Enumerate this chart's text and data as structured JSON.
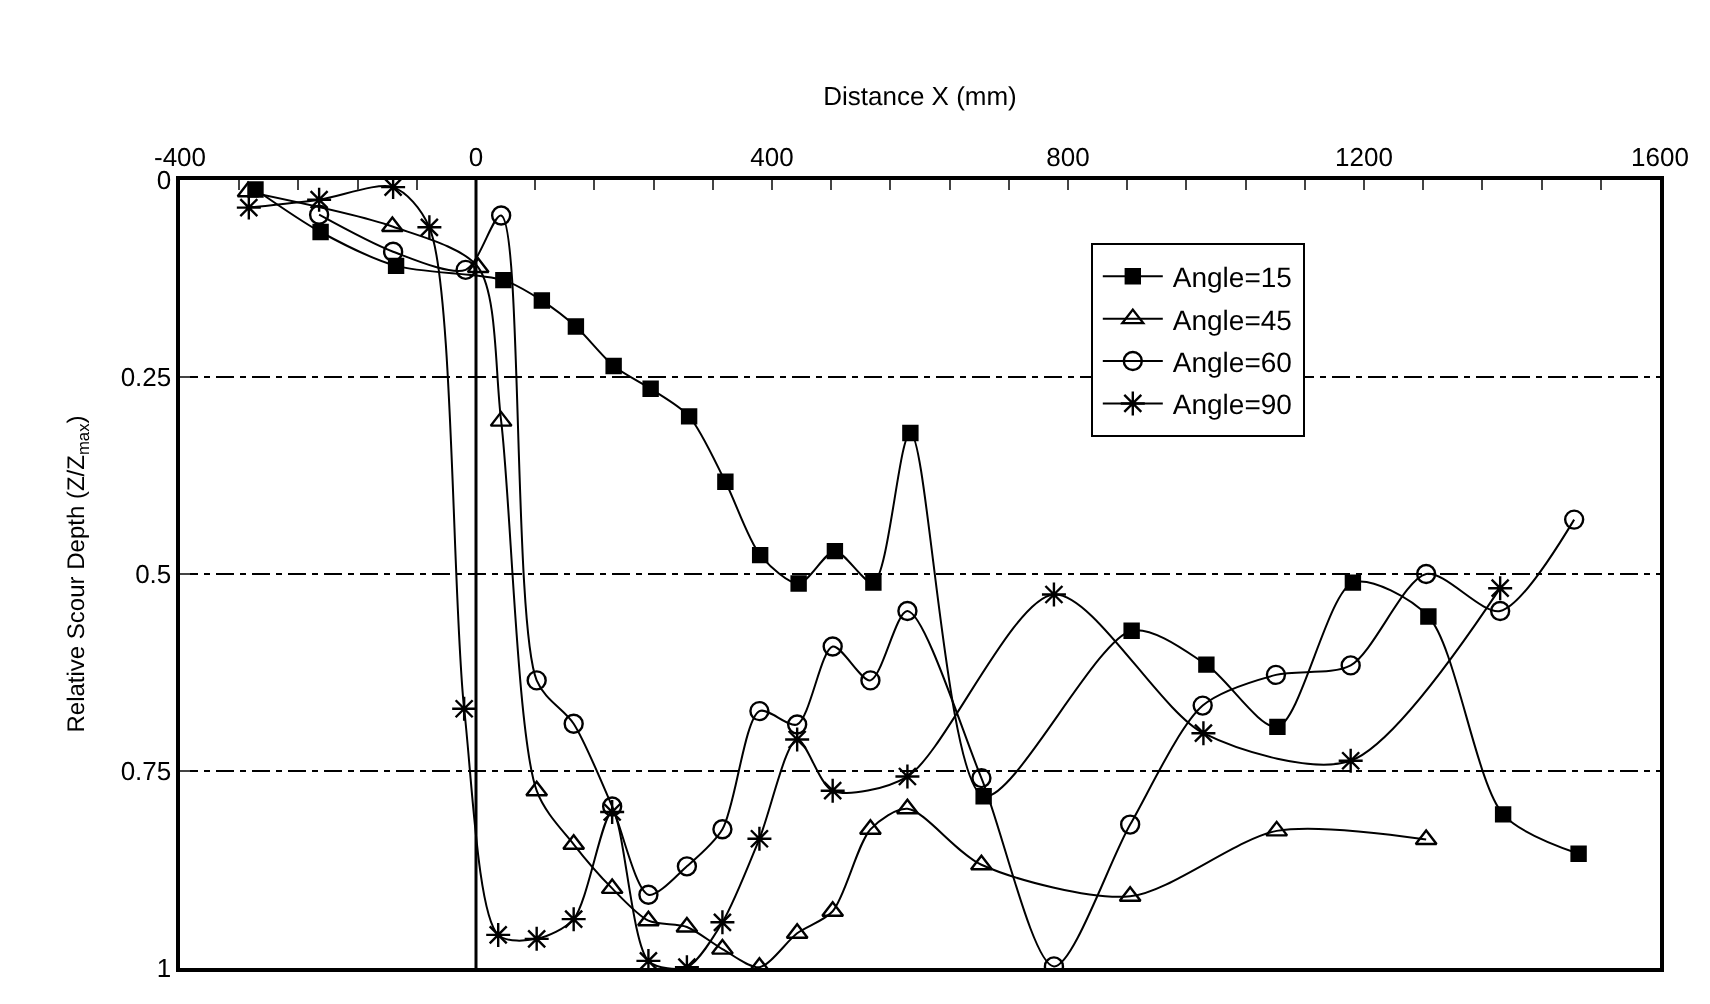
{
  "chart_data": {
    "type": "line",
    "xlabel": "Distance X (mm)",
    "ylabel": "Relative Scour Depth (Z/Z$_{max}$)",
    "xlim": [
      -400,
      1600
    ],
    "xticks": [
      -400,
      {
        "value": -320,
        "label": null
      },
      {
        "value": -240,
        "label": null
      },
      {
        "value": -160,
        "label": null
      },
      {
        "value": -80,
        "label": null
      },
      0,
      {
        "value": 80,
        "label": null
      },
      {
        "value": 160,
        "label": null
      },
      {
        "value": 240,
        "label": null
      },
      {
        "value": 320,
        "label": null
      },
      400,
      {
        "value": 480,
        "label": null
      },
      {
        "value": 560,
        "label": null
      },
      {
        "value": 640,
        "label": null
      },
      {
        "value": 720,
        "label": null
      },
      800,
      {
        "value": 880,
        "label": null
      },
      {
        "value": 960,
        "label": null
      },
      {
        "value": 1040,
        "label": null
      },
      {
        "value": 1120,
        "label": null
      },
      1200,
      {
        "value": 1280,
        "label": null
      },
      {
        "value": 1360,
        "label": null
      },
      {
        "value": 1440,
        "label": null
      },
      {
        "value": 1520,
        "label": null
      },
      1600
    ],
    "ylim": [
      1,
      0
    ],
    "yticks": [
      0,
      0.25,
      0.5,
      0.75,
      1
    ],
    "grid": "y",
    "legend": "top right",
    "ref_lines": [
      {
        "axis": "x",
        "value": 0,
        "color": "#000000",
        "line_style": "solid"
      }
    ],
    "series": [
      {
        "name": "Angle=15",
        "color": "#000000",
        "marker": "square",
        "x": [
          -298,
          -210,
          -108,
          37,
          89,
          135,
          186,
          236,
          288,
          337,
          384,
          436,
          485,
          537,
          587,
          686,
          886,
          987,
          1083,
          1185,
          1287,
          1388,
          1490
        ],
        "values": [
          0.012,
          0.066,
          0.109,
          0.127,
          0.153,
          0.186,
          0.236,
          0.265,
          0.3,
          0.383,
          0.476,
          0.512,
          0.471,
          0.511,
          0.321,
          0.782,
          0.572,
          0.615,
          0.694,
          0.511,
          0.554,
          0.805,
          0.855
        ]
      },
      {
        "name": "Angle=45",
        "color": "#000000",
        "marker": "triangle",
        "x": [
          -308,
          -113,
          3,
          34,
          82,
          132,
          184,
          233,
          285,
          333,
          383,
          434,
          482,
          533,
          583,
          683,
          884,
          1082,
          1284
        ],
        "values": [
          0.015,
          0.059,
          0.111,
          0.306,
          0.775,
          0.843,
          0.899,
          0.94,
          0.948,
          0.976,
          0.999,
          0.956,
          0.928,
          0.824,
          0.798,
          0.869,
          0.909,
          0.826,
          0.837
        ]
      },
      {
        "name": "Angle=60",
        "color": "#000000",
        "marker": "circle",
        "x": [
          -212,
          -112,
          -14,
          34,
          82,
          132,
          184,
          233,
          285,
          333,
          383,
          434,
          482,
          533,
          583,
          683,
          781,
          884,
          982,
          1081,
          1182,
          1284,
          1384,
          1484
        ],
        "values": [
          0.044,
          0.091,
          0.114,
          0.045,
          0.635,
          0.69,
          0.795,
          0.907,
          0.871,
          0.824,
          0.674,
          0.691,
          0.592,
          0.635,
          0.547,
          0.759,
          0.998,
          0.818,
          0.667,
          0.628,
          0.616,
          0.5,
          0.547,
          0.431
        ]
      },
      {
        "name": "Angle=90",
        "color": "#000000",
        "marker": "cross",
        "x": [
          -307,
          -212,
          -112,
          -63,
          -16,
          30,
          82,
          132,
          184,
          233,
          285,
          333,
          383,
          434,
          482,
          583,
          781,
          983,
          1182,
          1384
        ],
        "values": [
          0.035,
          0.025,
          0.009,
          0.06,
          0.671,
          0.958,
          0.963,
          0.938,
          0.802,
          0.991,
          0.999,
          0.942,
          0.836,
          0.71,
          0.775,
          0.757,
          0.526,
          0.702,
          0.737,
          0.518
        ]
      }
    ]
  }
}
